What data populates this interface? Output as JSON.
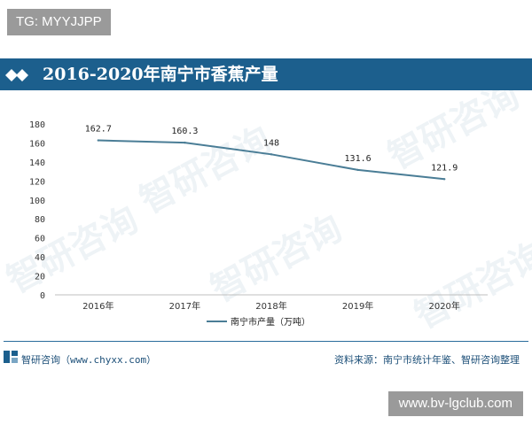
{
  "top_badge": "TG: MYYJJPP",
  "title": "2016-2020年南宁市香蕉产量",
  "footer": {
    "left": "智研咨询（www.chyxx.com）",
    "right": "资料来源：南宁市统计年鉴、智研咨询整理"
  },
  "bottom_badge": "www.bv-lgclub.com",
  "watermark": "智研咨询",
  "colors": {
    "title_bar": "#1c5f8d",
    "line": "#4a7d96",
    "footer_text": "#1c4f78"
  },
  "chart_data": {
    "type": "line",
    "categories": [
      "2016年",
      "2017年",
      "2018年",
      "2019年",
      "2020年"
    ],
    "series": [
      {
        "name": "南宁市产量（万吨）",
        "values": [
          162.7,
          160.3,
          148,
          131.6,
          121.9
        ],
        "labels": [
          "162.7",
          "160.3",
          "148",
          "131.6",
          "121.9"
        ]
      }
    ],
    "yticks": [
      0,
      20,
      40,
      60,
      80,
      100,
      120,
      140,
      160,
      180
    ],
    "ylim": [
      0,
      180
    ],
    "grid": false,
    "legend": "bottom-center"
  }
}
